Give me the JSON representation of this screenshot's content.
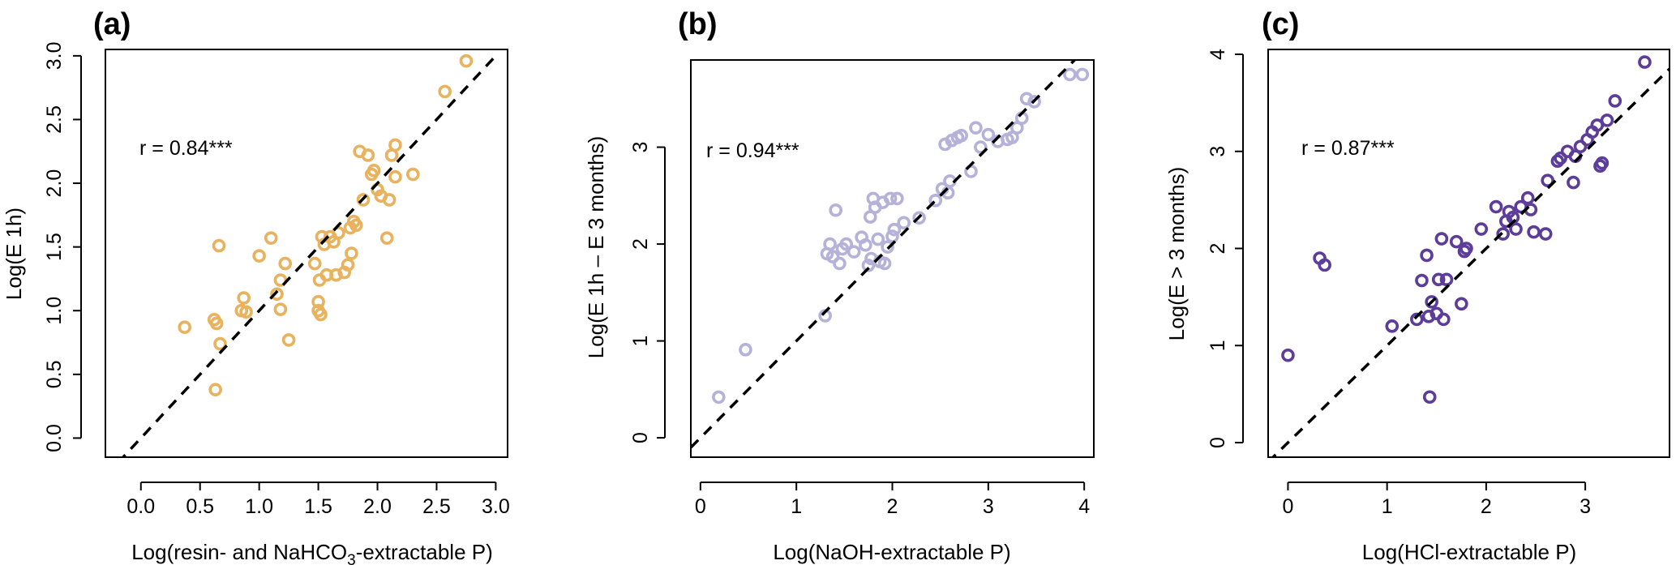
{
  "chart_data": [
    {
      "type": "scatter",
      "panel": "(a)",
      "annotation": "r = 0.84***",
      "xlabel": "Log(resin- and NaHCO3-extractable P)",
      "ylabel": "Log(E 1h)",
      "xlim": [
        -0.3,
        3.1
      ],
      "ylim": [
        -0.15,
        3.05
      ],
      "xticks": [
        "0.0",
        "0.5",
        "1.0",
        "1.5",
        "2.0",
        "2.5",
        "3.0"
      ],
      "yticks": [
        "0.0",
        "0.5",
        "1.0",
        "1.5",
        "2.0",
        "2.5",
        "3.0"
      ],
      "color": "#E8B25E",
      "points": [
        [
          0.37,
          0.87
        ],
        [
          0.62,
          0.93
        ],
        [
          0.64,
          0.9
        ],
        [
          0.63,
          0.38
        ],
        [
          0.67,
          0.74
        ],
        [
          0.66,
          1.51
        ],
        [
          0.85,
          1.0
        ],
        [
          0.87,
          1.1
        ],
        [
          0.89,
          0.99
        ],
        [
          1.0,
          1.43
        ],
        [
          1.1,
          1.57
        ],
        [
          1.15,
          1.13
        ],
        [
          1.18,
          1.24
        ],
        [
          1.18,
          1.01
        ],
        [
          1.22,
          1.37
        ],
        [
          1.25,
          0.77
        ],
        [
          1.47,
          1.37
        ],
        [
          1.5,
          1.07
        ],
        [
          1.5,
          1.0
        ],
        [
          1.51,
          1.24
        ],
        [
          1.52,
          0.97
        ],
        [
          1.53,
          1.58
        ],
        [
          1.55,
          1.52
        ],
        [
          1.57,
          1.28
        ],
        [
          1.6,
          1.58
        ],
        [
          1.63,
          1.54
        ],
        [
          1.65,
          1.28
        ],
        [
          1.67,
          1.61
        ],
        [
          1.72,
          1.3
        ],
        [
          1.75,
          1.36
        ],
        [
          1.78,
          1.45
        ],
        [
          1.77,
          1.65
        ],
        [
          1.8,
          1.7
        ],
        [
          1.82,
          1.67
        ],
        [
          1.85,
          2.25
        ],
        [
          1.88,
          1.87
        ],
        [
          1.92,
          2.22
        ],
        [
          1.95,
          2.07
        ],
        [
          1.97,
          2.1
        ],
        [
          2.0,
          1.95
        ],
        [
          2.03,
          1.9
        ],
        [
          2.08,
          1.57
        ],
        [
          2.1,
          1.87
        ],
        [
          2.12,
          2.22
        ],
        [
          2.15,
          2.3
        ],
        [
          2.15,
          2.05
        ],
        [
          2.3,
          2.07
        ],
        [
          2.57,
          2.72
        ],
        [
          2.75,
          2.96
        ]
      ],
      "fit_line": [
        [
          -0.3,
          -0.3
        ],
        [
          3.0,
          3.0
        ]
      ]
    },
    {
      "type": "scatter",
      "panel": "(b)",
      "annotation": "r = 0.94***",
      "xlabel": "Log(NaOH-extractable P)",
      "ylabel": "Log(E 1h – E 3 months)",
      "xlim": [
        -0.1,
        4.1
      ],
      "ylim": [
        -0.2,
        3.9
      ],
      "xticks": [
        "0",
        "1",
        "2",
        "3",
        "4"
      ],
      "yticks": [
        "0",
        "1",
        "2",
        "3"
      ],
      "color": "#B5B1D9",
      "points": [
        [
          0.19,
          0.42
        ],
        [
          0.47,
          0.91
        ],
        [
          1.3,
          1.26
        ],
        [
          1.32,
          1.9
        ],
        [
          1.35,
          2.0
        ],
        [
          1.38,
          1.87
        ],
        [
          1.41,
          2.35
        ],
        [
          1.45,
          1.8
        ],
        [
          1.48,
          1.95
        ],
        [
          1.52,
          2.0
        ],
        [
          1.6,
          1.92
        ],
        [
          1.68,
          2.07
        ],
        [
          1.72,
          1.99
        ],
        [
          1.75,
          1.78
        ],
        [
          1.77,
          2.28
        ],
        [
          1.78,
          1.85
        ],
        [
          1.8,
          2.47
        ],
        [
          1.82,
          2.38
        ],
        [
          1.85,
          2.05
        ],
        [
          1.87,
          1.82
        ],
        [
          1.9,
          2.43
        ],
        [
          1.92,
          1.8
        ],
        [
          1.95,
          1.97
        ],
        [
          1.98,
          2.47
        ],
        [
          2.0,
          2.08
        ],
        [
          2.02,
          2.15
        ],
        [
          2.05,
          2.47
        ],
        [
          2.12,
          2.22
        ],
        [
          2.28,
          2.27
        ],
        [
          2.45,
          2.45
        ],
        [
          2.52,
          2.57
        ],
        [
          2.55,
          3.03
        ],
        [
          2.58,
          2.53
        ],
        [
          2.6,
          2.65
        ],
        [
          2.62,
          3.07
        ],
        [
          2.68,
          3.1
        ],
        [
          2.72,
          3.12
        ],
        [
          2.82,
          2.75
        ],
        [
          2.87,
          3.2
        ],
        [
          2.92,
          3.0
        ],
        [
          3.0,
          3.13
        ],
        [
          3.1,
          3.06
        ],
        [
          3.2,
          3.08
        ],
        [
          3.25,
          3.1
        ],
        [
          3.3,
          3.2
        ],
        [
          3.35,
          3.3
        ],
        [
          3.4,
          3.5
        ],
        [
          3.48,
          3.47
        ],
        [
          3.85,
          3.75
        ],
        [
          3.98,
          3.75
        ]
      ],
      "fit_line": [
        [
          -0.1,
          -0.1
        ],
        [
          4.0,
          4.0
        ]
      ]
    },
    {
      "type": "scatter",
      "panel": "(c)",
      "annotation": "r = 0.87***",
      "xlabel": "Log(HCl-extractable P)",
      "ylabel": "Log(E > 3 months)",
      "xlim": [
        -0.2,
        3.85
      ],
      "ylim": [
        -0.15,
        4.05
      ],
      "xticks": [
        "0",
        "1",
        "2",
        "3"
      ],
      "yticks": [
        "0",
        "1",
        "2",
        "3",
        "4"
      ],
      "color": "#5C3D9A",
      "points": [
        [
          0.0,
          0.9
        ],
        [
          0.32,
          1.9
        ],
        [
          0.37,
          1.83
        ],
        [
          1.05,
          1.2
        ],
        [
          1.3,
          1.27
        ],
        [
          1.35,
          1.67
        ],
        [
          1.4,
          1.93
        ],
        [
          1.42,
          1.3
        ],
        [
          1.45,
          1.45
        ],
        [
          1.43,
          0.47
        ],
        [
          1.5,
          1.33
        ],
        [
          1.52,
          1.68
        ],
        [
          1.55,
          2.1
        ],
        [
          1.57,
          1.27
        ],
        [
          1.6,
          1.68
        ],
        [
          1.7,
          2.07
        ],
        [
          1.75,
          1.43
        ],
        [
          1.78,
          1.97
        ],
        [
          1.8,
          2.0
        ],
        [
          1.95,
          2.2
        ],
        [
          2.1,
          2.43
        ],
        [
          2.17,
          2.15
        ],
        [
          2.2,
          2.28
        ],
        [
          2.23,
          2.38
        ],
        [
          2.27,
          2.32
        ],
        [
          2.3,
          2.2
        ],
        [
          2.35,
          2.43
        ],
        [
          2.42,
          2.52
        ],
        [
          2.45,
          2.4
        ],
        [
          2.48,
          2.17
        ],
        [
          2.6,
          2.15
        ],
        [
          2.62,
          2.7
        ],
        [
          2.72,
          2.9
        ],
        [
          2.75,
          2.93
        ],
        [
          2.82,
          3.0
        ],
        [
          2.88,
          2.68
        ],
        [
          2.9,
          2.95
        ],
        [
          2.95,
          3.05
        ],
        [
          3.02,
          3.12
        ],
        [
          3.07,
          3.2
        ],
        [
          3.12,
          3.27
        ],
        [
          3.15,
          2.85
        ],
        [
          3.17,
          2.88
        ],
        [
          3.22,
          3.32
        ],
        [
          3.3,
          3.52
        ],
        [
          3.6,
          3.92
        ]
      ],
      "fit_line": [
        [
          -0.2,
          -0.2
        ],
        [
          3.85,
          3.85
        ]
      ]
    }
  ]
}
